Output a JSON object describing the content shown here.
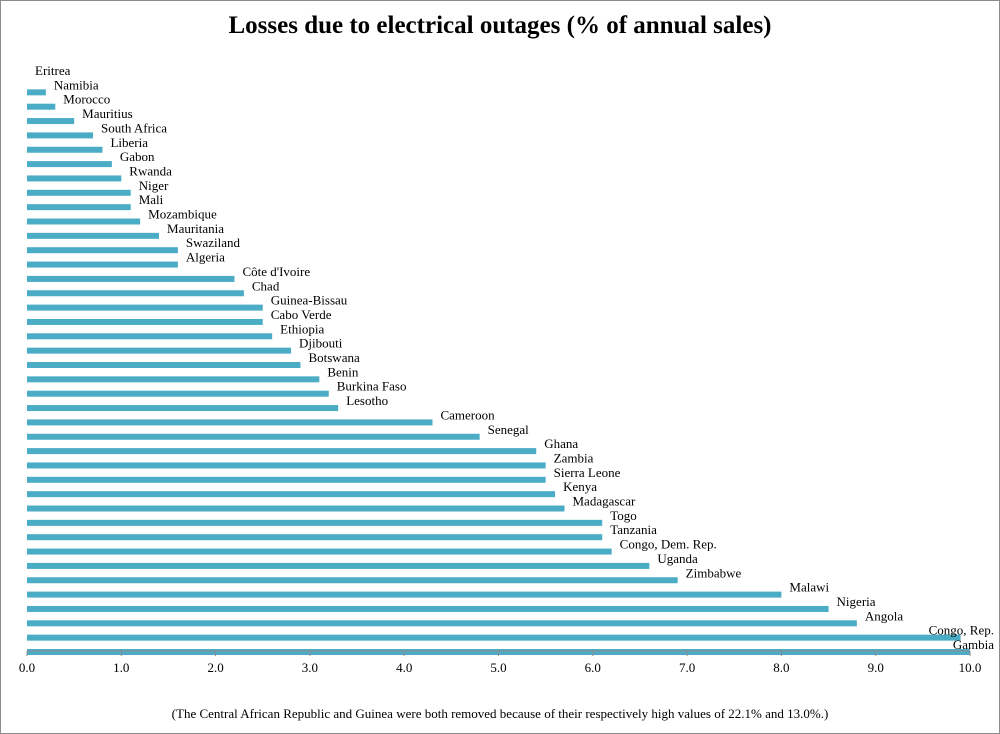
{
  "chart_data": {
    "type": "bar",
    "orientation": "horizontal",
    "title": "Losses due to electrical outages (% of annual sales)",
    "footnote": "(The Central African Republic and Guinea were both removed because of their respectively high values of 22.1% and 13.0%.)",
    "bar_color": "#4bacc6",
    "xlim": [
      0,
      10
    ],
    "x_ticks": [
      "0.0",
      "1.0",
      "2.0",
      "3.0",
      "4.0",
      "5.0",
      "6.0",
      "7.0",
      "8.0",
      "9.0",
      "10.0"
    ],
    "grid": false,
    "legend": "none",
    "categories": [
      "Eritrea",
      "Namibia",
      "Morocco",
      "Mauritius",
      "South Africa",
      "Liberia",
      "Gabon",
      "Rwanda",
      "Niger",
      "Mali",
      "Mozambique",
      "Mauritania",
      "Swaziland",
      "Algeria",
      "Côte d'Ivoire",
      "Chad",
      "Guinea-Bissau",
      "Cabo Verde",
      "Ethiopia",
      "Djibouti",
      "Botswana",
      "Benin",
      "Burkina Faso",
      "Lesotho",
      "Cameroon",
      "Senegal",
      "Ghana",
      "Zambia",
      "Sierra Leone",
      "Kenya",
      "Madagascar",
      "Togo",
      "Tanzania",
      "Congo, Dem. Rep.",
      "Uganda",
      "Zimbabwe",
      "Malawi",
      "Nigeria",
      "Angola",
      "Congo, Rep.",
      "Gambia"
    ],
    "values": [
      0.0,
      0.2,
      0.3,
      0.5,
      0.7,
      0.8,
      0.9,
      1.0,
      1.1,
      1.1,
      1.2,
      1.4,
      1.6,
      1.6,
      2.2,
      2.3,
      2.5,
      2.5,
      2.6,
      2.8,
      2.9,
      3.1,
      3.2,
      3.3,
      4.3,
      4.8,
      5.4,
      5.5,
      5.5,
      5.6,
      5.7,
      6.1,
      6.1,
      6.2,
      6.6,
      6.9,
      8.0,
      8.5,
      8.8,
      9.9,
      10.0
    ]
  }
}
